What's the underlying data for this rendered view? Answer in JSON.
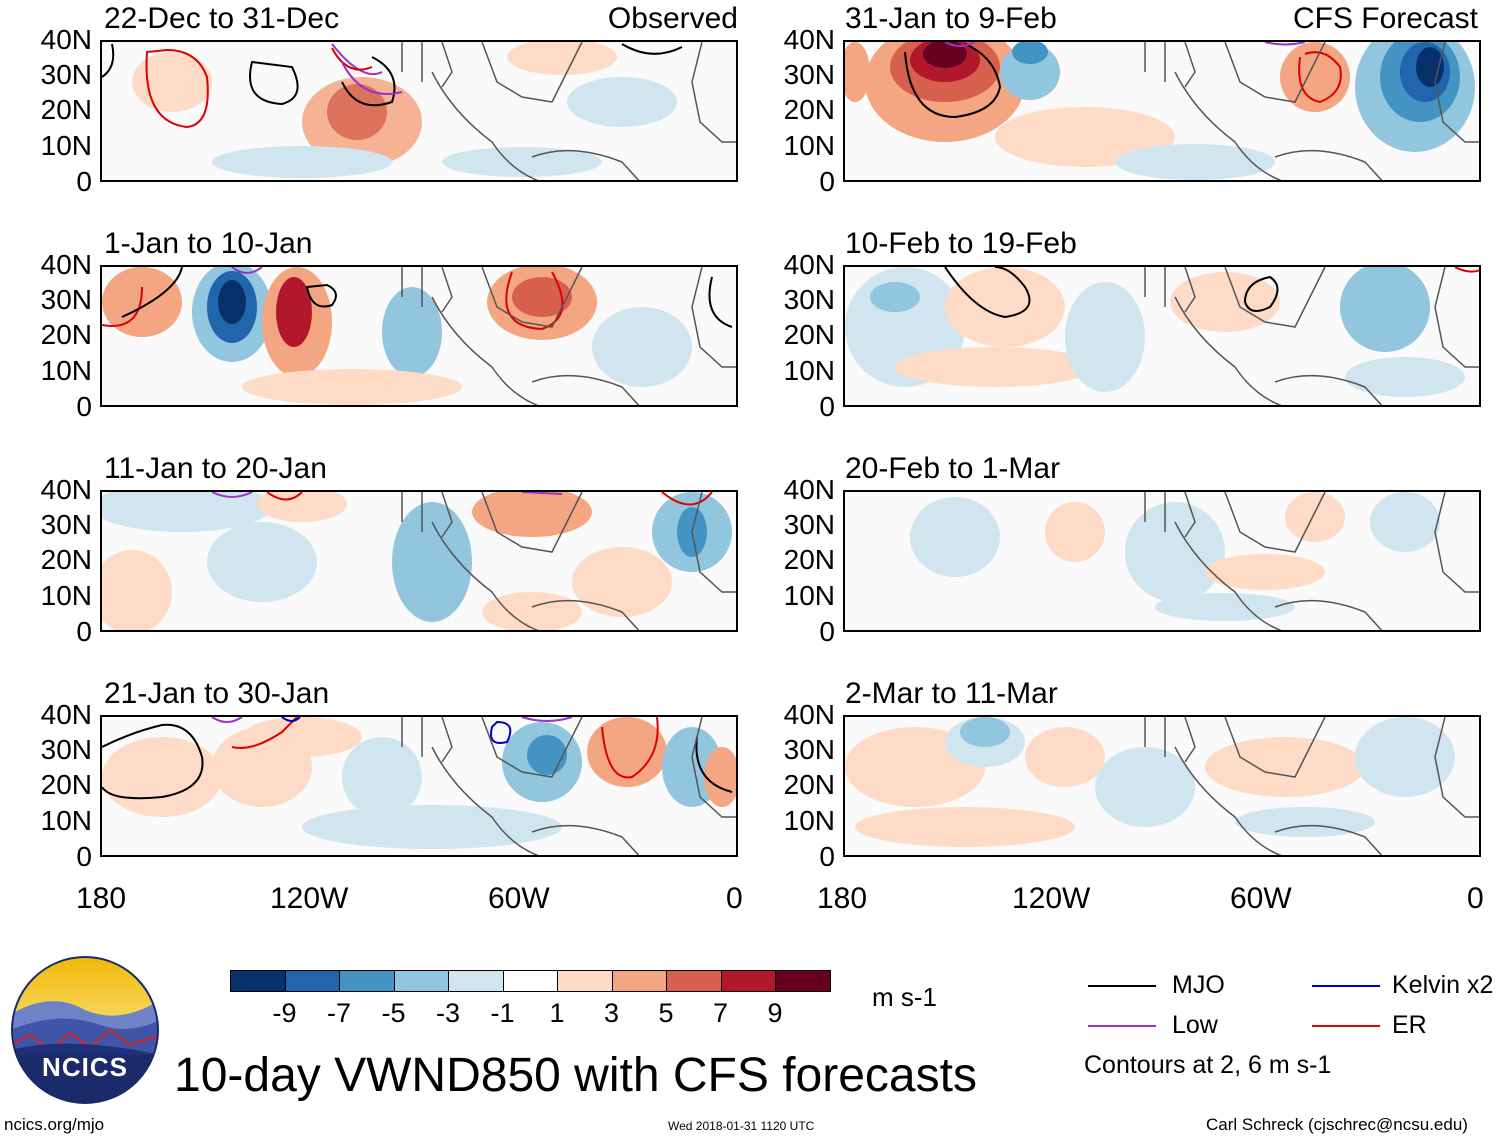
{
  "panels_left": [
    {
      "title": "22-Dec to 31-Dec",
      "label": "Observed"
    },
    {
      "title": "1-Jan to 10-Jan",
      "label": ""
    },
    {
      "title": "11-Jan to 20-Jan",
      "label": ""
    },
    {
      "title": "21-Jan to 30-Jan",
      "label": ""
    }
  ],
  "panels_right": [
    {
      "title": "31-Jan to 9-Feb",
      "label": "CFS Forecast"
    },
    {
      "title": "10-Feb to 19-Feb",
      "label": ""
    },
    {
      "title": "20-Feb to 1-Mar",
      "label": ""
    },
    {
      "title": "2-Mar to 11-Mar",
      "label": ""
    }
  ],
  "y_ticks": [
    "40N",
    "30N",
    "20N",
    "10N",
    "0"
  ],
  "x_ticks": [
    "180",
    "120W",
    "60W",
    "0"
  ],
  "colorbar": {
    "colors": [
      "#08306b",
      "#2166ac",
      "#4393c3",
      "#92c5de",
      "#d1e5f0",
      "#ffffff",
      "#fddbc7",
      "#f4a582",
      "#d6604d",
      "#b2182b",
      "#67001f"
    ],
    "labels": [
      "-9",
      "-7",
      "-5",
      "-3",
      "-1",
      "1",
      "3",
      "5",
      "7",
      "9"
    ],
    "units": "m s-1"
  },
  "legend": {
    "items": [
      {
        "label": "MJO",
        "color": "#000000"
      },
      {
        "label": "Kelvin x2",
        "color": "#0000cc"
      },
      {
        "label": "Low",
        "color": "#9933cc"
      },
      {
        "label": "ER",
        "color": "#dd0000"
      }
    ],
    "note": "Contours at 2, 6 m s-1"
  },
  "title": "10-day VWND850 with CFS forecasts",
  "logo_text": "NCICS",
  "footer": {
    "url": "ncics.org/mjo",
    "timestamp": "Wed 2018-01-31 1120 UTC",
    "credit": "Carl Schreck (cjschrec@ncsu.edu)"
  }
}
